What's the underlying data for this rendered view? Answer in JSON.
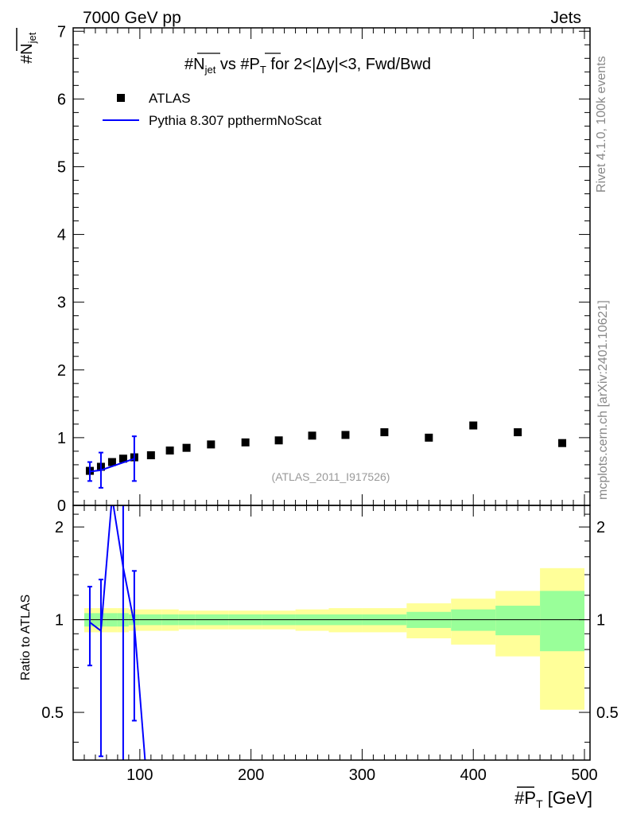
{
  "header": {
    "left": "7000 GeV pp",
    "right": "Jets"
  },
  "side_text": {
    "top": "Rivet 4.1.0,  100k events",
    "bottom": "mcplots.cern.ch [arXiv:2401.10621]"
  },
  "watermark": "(ATLAS_2011_I917526)",
  "colors": {
    "data": "#000000",
    "mc": "#0000ff",
    "band_inner": "#99ff99",
    "band_outer": "#ffff99"
  },
  "chart_data": [
    {
      "type": "scatter",
      "panel": "main",
      "title": "#N_jet vs #P_T for 2<|Δy|<3, Fwd/Bwd",
      "ylabel": "#N_jet",
      "xlim": [
        40,
        505
      ],
      "ylim": [
        0,
        7.05
      ],
      "y_ticks": [
        0,
        1,
        2,
        3,
        4,
        5,
        6,
        7
      ],
      "legend_position": "top-left",
      "series": [
        {
          "name": "ATLAS",
          "style": "markers",
          "x": [
            55,
            65,
            75,
            85,
            95,
            110,
            127,
            142,
            164,
            195,
            225,
            255,
            285,
            320,
            360,
            400,
            440,
            480
          ],
          "y": [
            0.51,
            0.57,
            0.64,
            0.69,
            0.71,
            0.74,
            0.81,
            0.85,
            0.9,
            0.93,
            0.96,
            1.03,
            1.04,
            1.08,
            1.0,
            1.18,
            1.08,
            0.92
          ]
        },
        {
          "name": "Pythia 8.307 ppthermNoScat",
          "style": "line",
          "x": [
            55,
            65,
            95
          ],
          "y": [
            0.5,
            0.52,
            0.69
          ],
          "err": [
            0.14,
            0.26,
            0.33
          ]
        }
      ]
    },
    {
      "type": "line",
      "panel": "ratio",
      "ylabel": "Ratio to ATLAS",
      "xlabel": "#P_T [GeV]",
      "xlim": [
        40,
        505
      ],
      "ylim": [
        0.35,
        2.35
      ],
      "y_ticks": [
        0.5,
        1,
        2
      ],
      "y_tick_labels": [
        "0.5",
        "1",
        "2"
      ],
      "x_ticks": [
        100,
        200,
        300,
        400,
        500
      ],
      "x_tick_labels": [
        "100",
        "200",
        "300",
        "400",
        "500"
      ],
      "reference_line": 1,
      "bands": {
        "edges": [
          50,
          60,
          70,
          80,
          90,
          100,
          120,
          135,
          150,
          180,
          210,
          240,
          270,
          300,
          340,
          380,
          420,
          460,
          500
        ],
        "inner_lo": [
          0.95,
          0.95,
          0.95,
          0.95,
          0.96,
          0.96,
          0.96,
          0.96,
          0.96,
          0.96,
          0.96,
          0.96,
          0.96,
          0.96,
          0.94,
          0.92,
          0.89,
          0.79
        ],
        "inner_hi": [
          1.05,
          1.05,
          1.05,
          1.05,
          1.04,
          1.04,
          1.04,
          1.04,
          1.04,
          1.04,
          1.04,
          1.04,
          1.04,
          1.04,
          1.06,
          1.08,
          1.11,
          1.24
        ],
        "outer_lo": [
          0.91,
          0.91,
          0.91,
          0.91,
          0.92,
          0.92,
          0.92,
          0.93,
          0.93,
          0.93,
          0.93,
          0.92,
          0.91,
          0.91,
          0.87,
          0.83,
          0.76,
          0.51
        ],
        "outer_hi": [
          1.09,
          1.09,
          1.09,
          1.09,
          1.08,
          1.08,
          1.08,
          1.07,
          1.07,
          1.07,
          1.07,
          1.08,
          1.09,
          1.09,
          1.13,
          1.17,
          1.24,
          1.47
        ]
      },
      "series": [
        {
          "name": "Pythia 8.307 ppthermNoScat",
          "x": [
            55,
            65,
            75,
            85,
            95,
            110
          ],
          "y": [
            0.98,
            0.92,
            2.5,
            1.48,
            0.97,
            0.2
          ],
          "err_lo": [
            0.27,
            0.56,
            null,
            1.2,
            0.5,
            null
          ],
          "err_hi": [
            0.3,
            0.43,
            null,
            0.9,
            0.47,
            null
          ]
        }
      ]
    }
  ]
}
